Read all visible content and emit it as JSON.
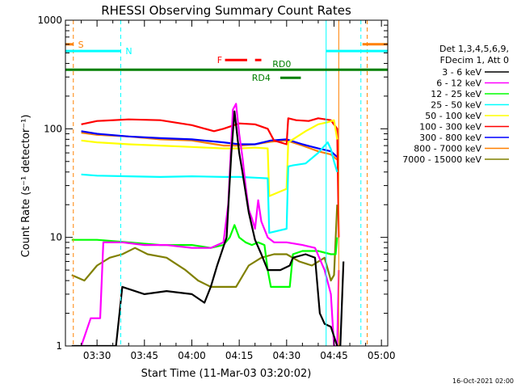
{
  "chart_data": {
    "type": "line",
    "title": "RHESSI Observing Summary Count Rates",
    "xlabel": "Start Time (11-Mar-03 03:20:02)",
    "ylabel": "Count Rate (s⁻¹ detector⁻¹)",
    "y_scale": "log",
    "ylim": [
      1,
      1000
    ],
    "xlim_minutes": [
      20,
      122
    ],
    "x_ticks": [
      {
        "label": "03:30",
        "min": 30
      },
      {
        "label": "03:45",
        "min": 45
      },
      {
        "label": "04:00",
        "min": 60
      },
      {
        "label": "04:15",
        "min": 75
      },
      {
        "label": "04:30",
        "min": 90
      },
      {
        "label": "04:45",
        "min": 105
      },
      {
        "label": "05:00",
        "min": 120
      }
    ],
    "y_ticks": [
      {
        "label": "1",
        "value": 1
      },
      {
        "label": "10",
        "value": 10
      },
      {
        "label": "100",
        "value": 100
      },
      {
        "label": "1000",
        "value": 1000
      }
    ],
    "legend_header": [
      "Det 1,3,4,5,6,9,",
      "FDecim 1, Att 0"
    ],
    "legend_position": "right",
    "series": [
      {
        "name": "3 - 6 keV",
        "color": "#000000",
        "x": [
          22,
          30,
          36,
          38,
          45,
          52,
          60,
          64,
          66,
          68,
          71,
          72.5,
          73.5,
          75,
          76,
          78,
          80,
          82,
          84,
          88,
          91,
          92,
          96,
          99,
          100.5,
          102,
          104,
          106,
          107,
          108
        ],
        "y": [
          1.0,
          1.0,
          1.0,
          3.5,
          3.0,
          3.2,
          3.0,
          2.5,
          3.5,
          5.5,
          10,
          60,
          145,
          60,
          40,
          17,
          9.5,
          7,
          5,
          5,
          5.5,
          6.5,
          7,
          6.5,
          2,
          1.6,
          1.5,
          1.0,
          1.0,
          6
        ]
      },
      {
        "name": "6 - 12 keV",
        "color": "#ff00ff",
        "x": [
          25,
          28,
          31,
          32,
          38,
          45,
          52,
          60,
          66,
          70,
          71.5,
          73,
          74,
          75,
          76,
          77,
          78,
          79,
          80,
          81,
          82,
          84,
          86,
          88,
          90,
          95,
          99,
          102,
          104,
          105,
          106,
          106.5
        ],
        "y": [
          1.0,
          1.8,
          1.8,
          9,
          9,
          8.5,
          8.5,
          8,
          8,
          9,
          20,
          150,
          170,
          90,
          55,
          30,
          18,
          15,
          12,
          22,
          14,
          10,
          9,
          9,
          9,
          8.5,
          8,
          5,
          3,
          1.0,
          1.0,
          5
        ]
      },
      {
        "name": "12 - 25 keV",
        "color": "#00ff00",
        "x": [
          22,
          30,
          40,
          50,
          60,
          66,
          70,
          72,
          73.5,
          75,
          77,
          79,
          81,
          83,
          84,
          85,
          86,
          89,
          91,
          92,
          95,
          100,
          104,
          105.5,
          106
        ],
        "y": [
          9.5,
          9.5,
          9.0,
          8.5,
          8.5,
          8.0,
          8.5,
          10,
          13,
          10,
          9,
          8.5,
          9,
          8.5,
          5,
          3.5,
          3.5,
          3.5,
          3.5,
          7,
          7.5,
          7.5,
          7,
          7,
          10
        ]
      },
      {
        "name": "25 - 50 keV",
        "color": "#00ffff",
        "x": [
          25,
          30,
          40,
          50,
          60,
          70,
          75,
          80,
          84,
          84.5,
          90,
          90.5,
          92,
          96,
          100,
          103,
          104,
          105,
          106
        ],
        "y": [
          38,
          37,
          36.5,
          36,
          36.5,
          36,
          36,
          35.5,
          35,
          11,
          12,
          45,
          46,
          48,
          60,
          75,
          65,
          50,
          40
        ]
      },
      {
        "name": "50 - 100 keV",
        "color": "#ffff00",
        "x": [
          25,
          30,
          40,
          50,
          60,
          70,
          75,
          80,
          84,
          84.5,
          90,
          90.5,
          92,
          96,
          100,
          103,
          105,
          106
        ],
        "y": [
          78,
          75,
          72,
          70,
          68,
          66,
          66,
          67,
          66,
          24,
          28,
          75,
          80,
          95,
          110,
          115,
          120,
          80
        ]
      },
      {
        "name": "100 - 300 keV",
        "color": "#ff0000",
        "x": [
          25,
          30,
          40,
          50,
          60,
          67,
          70,
          75,
          80,
          84,
          86,
          90,
          90.5,
          93,
          97,
          100,
          104,
          106,
          106.5
        ],
        "y": [
          110,
          118,
          122,
          120,
          108,
          95,
          100,
          112,
          110,
          100,
          78,
          72,
          125,
          120,
          118,
          125,
          120,
          100,
          10
        ]
      },
      {
        "name": "300 - 800 keV",
        "color": "#0000ff",
        "x": [
          25,
          30,
          40,
          50,
          60,
          70,
          75,
          80,
          85,
          90,
          95,
          100,
          104,
          106
        ],
        "y": [
          95,
          90,
          85,
          82,
          80,
          75,
          72,
          72,
          78,
          80,
          72,
          66,
          62,
          55
        ]
      },
      {
        "name": "800 - 7000 keV",
        "color": "#ff8000",
        "x": [
          25,
          30,
          40,
          50,
          60,
          70,
          75,
          80,
          85,
          90,
          95,
          100,
          104,
          106
        ],
        "y": [
          92,
          88,
          85,
          80,
          78,
          70,
          70,
          72,
          76,
          78,
          70,
          62,
          58,
          52
        ]
      },
      {
        "name": "7000 - 15000 keV",
        "color": "#808000",
        "x": [
          22,
          26,
          30,
          34,
          38,
          42,
          46,
          52,
          58,
          62,
          66,
          70,
          74,
          78,
          82,
          86,
          90,
          94,
          98,
          102,
          104,
          105,
          106
        ],
        "y": [
          4.5,
          4.0,
          5.5,
          6.5,
          7.0,
          8.0,
          7.0,
          6.5,
          5.0,
          4.0,
          3.5,
          3.5,
          3.5,
          5.5,
          6.5,
          7.0,
          7.0,
          6.0,
          5.5,
          6.5,
          4.0,
          4.5,
          20
        ]
      }
    ],
    "annotations": {
      "flags": [
        {
          "label": "S",
          "color": "#ff8000",
          "x_start": 20,
          "x_end": 22.5,
          "level": 600,
          "label_x": 24
        },
        {
          "label": "N",
          "color": "#00ffff",
          "x_start": 20,
          "x_end": 37.5,
          "level": 520,
          "label_x": 39
        },
        {
          "label": "F",
          "color": "#ff0000",
          "x_start": 70.5,
          "x_end": 77.5,
          "level": 430,
          "label_x": 68
        },
        {
          "label": "RD0",
          "color": "#008000",
          "x_start": 20,
          "x_end": 122,
          "level": 350,
          "label_x": 85.5
        },
        {
          "label": "RD4",
          "color": "#008000",
          "x_start": 88,
          "x_end": 94.5,
          "level": 295,
          "label_x": 79
        }
      ],
      "flag_extra_segments": [
        {
          "color": "#ff0000",
          "x_start": 80,
          "x_end": 82,
          "level": 430
        },
        {
          "color": "#00ffff",
          "x_start": 102.5,
          "x_end": 122,
          "level": 520
        },
        {
          "color": "#ff8000",
          "x_start": 114,
          "x_end": 122,
          "level": 600
        }
      ],
      "vertical_lines": [
        {
          "color": "#ff8000",
          "x": 22.5,
          "dashed": true
        },
        {
          "color": "#00ffff",
          "x": 37.5,
          "dashed": true
        },
        {
          "color": "#00ffff",
          "x": 102.5,
          "dashed": false
        },
        {
          "color": "#ff8000",
          "x": 106.5,
          "dashed": false
        },
        {
          "color": "#00ffff",
          "x": 113.5,
          "dashed": true
        },
        {
          "color": "#ff8000",
          "x": 115.5,
          "dashed": true
        }
      ]
    },
    "timestamp": "16-Oct-2021 02:00"
  }
}
